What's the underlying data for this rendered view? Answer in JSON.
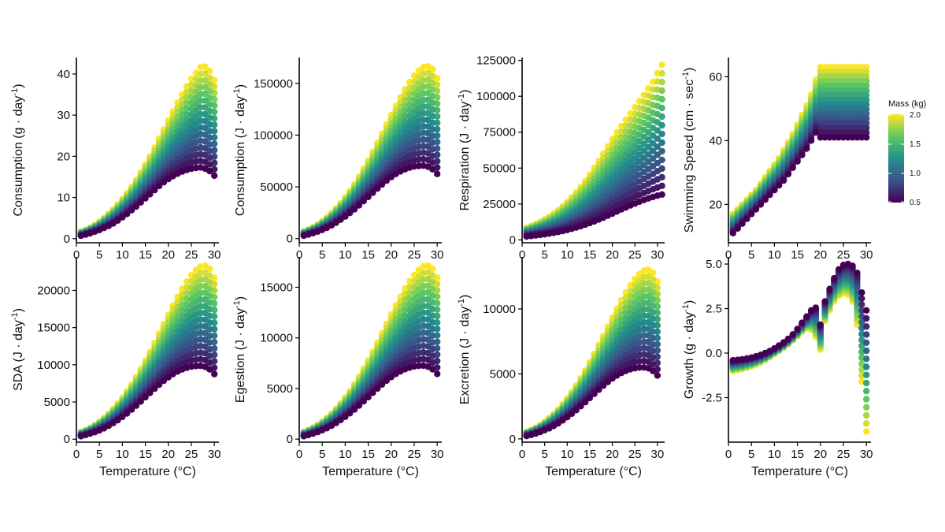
{
  "figure": {
    "legend": {
      "title": "Mass (kg)",
      "min": 0.5,
      "max": 2.0,
      "labels": [
        "2.0",
        "1.5",
        "1.0",
        "0.5"
      ],
      "colormap": [
        "#440154",
        "#3b528b",
        "#21918c",
        "#5ec962",
        "#fde725"
      ]
    },
    "xlabel": "Temperature (°C)"
  },
  "chart_data": [
    {
      "id": "consumption-g",
      "type": "scatter",
      "ylabel": "Consumption  (g · day",
      "ylabel_sup": "-1",
      "ylabel_close": ")",
      "xlabel": "",
      "xlim": [
        0,
        31
      ],
      "ylim": [
        -1,
        44
      ],
      "xticks": [
        "0",
        "5",
        "10",
        "15",
        "20",
        "25",
        "30"
      ],
      "yticks": [
        "0",
        "10",
        "20",
        "30",
        "40"
      ],
      "x": [
        1,
        2,
        3,
        4,
        5,
        6,
        7,
        8,
        9,
        10,
        11,
        12,
        13,
        14,
        15,
        16,
        17,
        18,
        19,
        20,
        21,
        22,
        23,
        24,
        25,
        26,
        27,
        28,
        29,
        30
      ],
      "series": [
        {
          "mass": 0.5,
          "y": [
            0.7,
            1.0,
            1.3,
            1.7,
            2.1,
            2.6,
            3.1,
            3.7,
            4.4,
            5.2,
            6.0,
            6.9,
            7.8,
            8.8,
            9.8,
            10.8,
            11.8,
            12.8,
            13.7,
            14.5,
            15.2,
            15.8,
            16.3,
            16.7,
            17.0,
            17.2,
            17.3,
            17.0,
            16.4,
            15.3
          ]
        },
        {
          "mass": 2.0,
          "y": [
            1.7,
            2.1,
            2.7,
            3.3,
            4.1,
            5.0,
            6.0,
            7.1,
            8.3,
            9.6,
            11.0,
            12.6,
            14.3,
            16.1,
            18.0,
            20.0,
            22.1,
            24.3,
            26.5,
            28.7,
            30.9,
            33.0,
            35.0,
            37.0,
            38.8,
            40.3,
            41.6,
            41.8,
            40.7,
            38.5
          ]
        }
      ]
    },
    {
      "id": "consumption-j",
      "type": "scatter",
      "ylabel": "Consumption  (J · day",
      "ylabel_sup": "-1",
      "ylabel_close": ")",
      "xlabel": "",
      "xlim": [
        0,
        31
      ],
      "ylim": [
        -4000,
        175000
      ],
      "xticks": [
        "0",
        "5",
        "10",
        "15",
        "20",
        "25",
        "30"
      ],
      "yticks": [
        "0",
        "50000",
        "100000",
        "150000"
      ],
      "ytick_values": [
        0,
        50000,
        100000,
        150000
      ],
      "x": [
        1,
        2,
        3,
        4,
        5,
        6,
        7,
        8,
        9,
        10,
        11,
        12,
        13,
        14,
        15,
        16,
        17,
        18,
        19,
        20,
        21,
        22,
        23,
        24,
        25,
        26,
        27,
        28,
        29,
        30
      ],
      "series": [
        {
          "mass": 0.5,
          "y": [
            2800,
            4000,
            5300,
            6800,
            8500,
            10500,
            12800,
            15400,
            18300,
            21400,
            24800,
            28400,
            32200,
            36200,
            40300,
            44400,
            48500,
            52400,
            56100,
            59500,
            62500,
            65000,
            67000,
            68600,
            69700,
            70300,
            70500,
            69500,
            67000,
            62500
          ]
        },
        {
          "mass": 2.0,
          "y": [
            7000,
            8800,
            11000,
            13700,
            16800,
            20400,
            24500,
            29100,
            34200,
            39800,
            45900,
            52600,
            59800,
            67400,
            75400,
            83800,
            92500,
            101500,
            110500,
            119500,
            128200,
            136500,
            144300,
            151300,
            157400,
            162300,
            165700,
            166500,
            163500,
            155000
          ]
        }
      ]
    },
    {
      "id": "respiration",
      "type": "scatter",
      "ylabel": "Respiration  (J · day",
      "ylabel_sup": "-1",
      "ylabel_close": ")",
      "xlabel": "",
      "xlim": [
        0,
        31.6
      ],
      "ylim": [
        -2000,
        127000
      ],
      "xticks": [
        "0",
        "5",
        "10",
        "15",
        "20",
        "25",
        "30"
      ],
      "yticks": [
        "0",
        "25000",
        "50000",
        "75000",
        "100000",
        "125000"
      ],
      "ytick_values": [
        0,
        25000,
        50000,
        75000,
        100000,
        125000
      ],
      "x": [
        1,
        2,
        3,
        4,
        5,
        6,
        7,
        8,
        9,
        10,
        11,
        12,
        13,
        14,
        15,
        16,
        17,
        18,
        19,
        20,
        21,
        22,
        23,
        24,
        25,
        26,
        27,
        28,
        29,
        30,
        31
      ],
      "series": [
        {
          "mass": 0.5,
          "y": [
            2400,
            2700,
            3100,
            3500,
            3900,
            4400,
            4900,
            5500,
            6200,
            6900,
            7700,
            8600,
            9600,
            10600,
            11700,
            12900,
            14200,
            15500,
            16900,
            18300,
            19800,
            21200,
            22600,
            24000,
            25300,
            26600,
            27800,
            28900,
            29900,
            30800,
            31600
          ]
        },
        {
          "mass": 2.0,
          "y": [
            8500,
            9700,
            11000,
            12500,
            14200,
            16100,
            18300,
            20700,
            23400,
            26400,
            29600,
            33100,
            36900,
            41000,
            45400,
            50100,
            55000,
            60000,
            65000,
            70000,
            74800,
            79300,
            83700,
            88000,
            92300,
            96700,
            101000,
            105500,
            110000,
            116000,
            122000
          ]
        }
      ]
    },
    {
      "id": "swimming-speed",
      "type": "scatter",
      "ylabel": "Swimming Speed  (cm · sec",
      "ylabel_sup": "-1",
      "ylabel_close": ")",
      "xlabel": "",
      "xlim": [
        0,
        31
      ],
      "ylim": [
        8,
        66
      ],
      "xticks": [
        "0",
        "5",
        "10",
        "15",
        "20",
        "25",
        "30"
      ],
      "yticks": [
        "20",
        "40",
        "60"
      ],
      "ytick_values": [
        20,
        40,
        60
      ],
      "x": [
        1,
        2,
        3,
        4,
        5,
        6,
        7,
        8,
        9,
        10,
        11,
        12,
        13,
        14,
        15,
        16,
        17,
        18,
        19,
        20,
        21,
        22,
        23,
        24,
        25,
        26,
        27,
        28,
        29,
        30
      ],
      "series": [
        {
          "mass": 0.5,
          "y": [
            11,
            12.5,
            14,
            15.5,
            17,
            18.5,
            20,
            21.5,
            23,
            24.5,
            26,
            27.5,
            29.5,
            31.5,
            33.5,
            35.5,
            37.5,
            40,
            42.5,
            41,
            41,
            41,
            41,
            41,
            41,
            41,
            41,
            41,
            41,
            41
          ]
        },
        {
          "mass": 2.0,
          "y": [
            17,
            18.5,
            20,
            21.5,
            23,
            24.5,
            26.5,
            28.5,
            30.5,
            32.5,
            34.5,
            37,
            39.5,
            42,
            45,
            48,
            51,
            54.5,
            59,
            63,
            63,
            63,
            63,
            63,
            63,
            63,
            63,
            63,
            63,
            63
          ]
        }
      ]
    },
    {
      "id": "sda",
      "type": "scatter",
      "ylabel": "SDA  (J · day",
      "ylabel_sup": "-1",
      "ylabel_close": ")",
      "xlabel": "Temperature (°C)",
      "xlim": [
        0,
        31
      ],
      "ylim": [
        -400,
        24500
      ],
      "xticks": [
        "0",
        "5",
        "10",
        "15",
        "20",
        "25",
        "30"
      ],
      "yticks": [
        "0",
        "5000",
        "10000",
        "15000",
        "20000"
      ],
      "ytick_values": [
        0,
        5000,
        10000,
        15000,
        20000
      ],
      "x": [
        1,
        2,
        3,
        4,
        5,
        6,
        7,
        8,
        9,
        10,
        11,
        12,
        13,
        14,
        15,
        16,
        17,
        18,
        19,
        20,
        21,
        22,
        23,
        24,
        25,
        26,
        27,
        28,
        29,
        30
      ],
      "series": [
        {
          "mass": 0.5,
          "y": [
            400,
            560,
            740,
            950,
            1190,
            1470,
            1790,
            2160,
            2560,
            3000,
            3470,
            3980,
            4510,
            5070,
            5640,
            6220,
            6790,
            7340,
            7850,
            8330,
            8750,
            9100,
            9380,
            9600,
            9760,
            9840,
            9870,
            9730,
            9380,
            8750
          ]
        },
        {
          "mass": 2.0,
          "y": [
            980,
            1230,
            1540,
            1920,
            2350,
            2860,
            3430,
            4070,
            4790,
            5570,
            6430,
            7360,
            8370,
            9440,
            10560,
            11730,
            12950,
            14210,
            15470,
            16730,
            17950,
            19110,
            20200,
            21180,
            22040,
            22720,
            23200,
            23310,
            22890,
            21700
          ]
        }
      ]
    },
    {
      "id": "egestion",
      "type": "scatter",
      "ylabel": "Egestion  (J · day",
      "ylabel_sup": "-1",
      "ylabel_close": ")",
      "xlabel": "Temperature (°C)",
      "xlim": [
        0,
        31
      ],
      "ylim": [
        -300,
        18000
      ],
      "xticks": [
        "0",
        "5",
        "10",
        "15",
        "20",
        "25",
        "30"
      ],
      "yticks": [
        "0",
        "5000",
        "10000",
        "15000"
      ],
      "ytick_values": [
        0,
        5000,
        10000,
        15000
      ],
      "x": [
        1,
        2,
        3,
        4,
        5,
        6,
        7,
        8,
        9,
        10,
        11,
        12,
        13,
        14,
        15,
        16,
        17,
        18,
        19,
        20,
        21,
        22,
        23,
        24,
        25,
        26,
        27,
        28,
        29,
        30
      ],
      "series": [
        {
          "mass": 0.5,
          "y": [
            290,
            410,
            540,
            700,
            880,
            1080,
            1320,
            1590,
            1890,
            2210,
            2560,
            2930,
            3320,
            3730,
            4150,
            4580,
            5000,
            5400,
            5780,
            6130,
            6440,
            6700,
            6910,
            7070,
            7180,
            7240,
            7260,
            7160,
            6900,
            6440
          ]
        },
        {
          "mass": 2.0,
          "y": [
            720,
            910,
            1130,
            1410,
            1730,
            2100,
            2520,
            3000,
            3520,
            4100,
            4730,
            5420,
            6160,
            6950,
            7770,
            8630,
            9530,
            10460,
            11380,
            12310,
            13210,
            14060,
            14870,
            15590,
            16220,
            16720,
            17070,
            17150,
            16850,
            15970
          ]
        }
      ]
    },
    {
      "id": "excretion",
      "type": "scatter",
      "ylabel": "Excretion  (J · day",
      "ylabel_sup": "-1",
      "ylabel_close": ")",
      "xlabel": "Temperature (°C)",
      "xlim": [
        0,
        31.6
      ],
      "ylim": [
        -250,
        14000
      ],
      "xticks": [
        "0",
        "5",
        "10",
        "15",
        "20",
        "25",
        "30"
      ],
      "yticks": [
        "0",
        "5000",
        "10000"
      ],
      "ytick_values": [
        0,
        5000,
        10000
      ],
      "x": [
        1,
        2,
        3,
        4,
        5,
        6,
        7,
        8,
        9,
        10,
        11,
        12,
        13,
        14,
        15,
        16,
        17,
        18,
        19,
        20,
        21,
        22,
        23,
        24,
        25,
        26,
        27,
        28,
        29,
        30
      ],
      "series": [
        {
          "mass": 0.5,
          "y": [
            220,
            310,
            410,
            530,
            670,
            820,
            1000,
            1200,
            1430,
            1680,
            1940,
            2220,
            2520,
            2830,
            3150,
            3470,
            3790,
            4100,
            4380,
            4650,
            4880,
            5080,
            5240,
            5360,
            5440,
            5490,
            5500,
            5430,
            5230,
            4880
          ]
        },
        {
          "mass": 2.0,
          "y": [
            550,
            690,
            860,
            1070,
            1310,
            1600,
            1910,
            2270,
            2670,
            3110,
            3590,
            4110,
            4670,
            5270,
            5890,
            6550,
            7230,
            7930,
            8630,
            9330,
            10010,
            10660,
            11270,
            11820,
            12300,
            12680,
            12940,
            13000,
            12780,
            12110
          ]
        }
      ]
    },
    {
      "id": "growth",
      "type": "scatter",
      "ylabel": "Growth  (g · day",
      "ylabel_sup": "-1",
      "ylabel_close": ")",
      "xlabel": "Temperature (°C)",
      "xlim": [
        0,
        31
      ],
      "ylim": [
        -5.0,
        5.4
      ],
      "xticks": [
        "0",
        "5",
        "10",
        "15",
        "20",
        "25",
        "30"
      ],
      "yticks": [
        "-2.5",
        "0.0",
        "2.5",
        "5.0"
      ],
      "ytick_values": [
        -2.5,
        0,
        2.5,
        5.0
      ],
      "x": [
        1,
        2,
        3,
        4,
        5,
        6,
        7,
        8,
        9,
        10,
        11,
        12,
        13,
        14,
        15,
        16,
        17,
        18,
        19,
        20,
        21,
        22,
        23,
        24,
        25,
        26,
        27,
        28,
        29,
        30
      ],
      "series": [
        {
          "mass": 0.5,
          "y": [
            -0.4,
            -0.38,
            -0.35,
            -0.3,
            -0.25,
            -0.18,
            -0.1,
            0.0,
            0.12,
            0.26,
            0.42,
            0.6,
            0.8,
            1.05,
            1.35,
            1.7,
            2.05,
            2.4,
            2.55,
            1.6,
            2.9,
            3.6,
            4.2,
            4.7,
            4.95,
            5.0,
            4.9,
            4.5,
            3.4,
            2.4
          ]
        },
        {
          "mass": 2.0,
          "y": [
            -1.0,
            -0.95,
            -0.9,
            -0.82,
            -0.74,
            -0.64,
            -0.52,
            -0.38,
            -0.22,
            -0.05,
            0.12,
            0.3,
            0.5,
            0.72,
            0.95,
            1.2,
            1.4,
            1.3,
            0.9,
            0.2,
            1.8,
            2.4,
            2.9,
            3.2,
            3.35,
            3.3,
            2.9,
            1.6,
            -1.6,
            -4.4
          ]
        }
      ]
    }
  ]
}
